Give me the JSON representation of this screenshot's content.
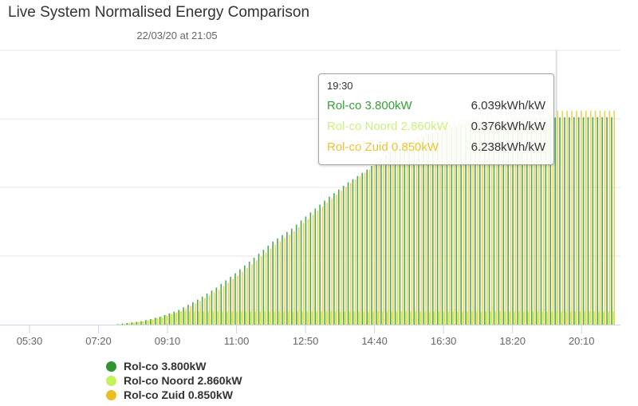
{
  "header": {
    "title": "Live System Normalised Energy Comparison",
    "subtitle": "22/03/20 at 21:05"
  },
  "tooltip": {
    "time": "19:30",
    "rows": [
      {
        "name": "Rol-co 3.800kW",
        "value": "6.039kWh/kW",
        "color": "#35a035"
      },
      {
        "name": "Rol-co Noord 2.860kW",
        "value": "0.376kWh/kW",
        "color": "#cdf07e"
      },
      {
        "name": "Rol-co Zuid 0.850kW",
        "value": "6.238kWh/kW",
        "color": "#ecc331"
      }
    ]
  },
  "legend": {
    "items": [
      {
        "label": "Rol-co 3.800kW",
        "color": "#2f962f"
      },
      {
        "label": "Rol-co Noord 2.860kW",
        "color": "#c3f25e"
      },
      {
        "label": "Rol-co Zuid 0.850kW",
        "color": "#ecbe23"
      }
    ]
  },
  "chart_data": {
    "type": "bar",
    "title": "Live System Normalised Energy Comparison",
    "subtitle": "22/03/20 at 21:05",
    "unit": "kWh/kW",
    "ylim": [
      0,
      8
    ],
    "y_gridlines": [
      0,
      2,
      4,
      6,
      8
    ],
    "y_axis_labels_visible": false,
    "x_ticks": [
      "05:30",
      "07:20",
      "09:10",
      "11:00",
      "12:50",
      "14:40",
      "16:30",
      "18:20",
      "20:10"
    ],
    "x_axis_range_minutes": [
      283,
      1272
    ],
    "bar_start": "07:45",
    "bar_end": "21:07",
    "bar_interval_minutes": 7.5,
    "hover_time": "19:30",
    "series": [
      {
        "name": "Rol-co 3.800kW",
        "color": "#2f962f",
        "bar_color": "#3fa03a",
        "times": [
          "07:45",
          "08:00",
          "08:30",
          "09:00",
          "09:30",
          "10:00",
          "10:30",
          "11:00",
          "11:30",
          "12:00",
          "12:30",
          "13:00",
          "13:30",
          "14:00",
          "14:30",
          "15:00",
          "15:30",
          "16:00",
          "16:30",
          "17:00",
          "17:30",
          "18:00",
          "18:30",
          "19:00",
          "19:30",
          "20:00",
          "20:30",
          "21:00",
          "21:07"
        ],
        "values": [
          0,
          0.03,
          0.1,
          0.23,
          0.43,
          0.73,
          1.08,
          1.5,
          1.95,
          2.42,
          2.8,
          3.27,
          3.73,
          4.15,
          4.52,
          4.95,
          5.25,
          5.5,
          5.68,
          5.82,
          5.91,
          5.96,
          6.0,
          6.02,
          6.039,
          6.05,
          6.05,
          6.05,
          6.05
        ]
      },
      {
        "name": "Rol-co Noord 2.860kW",
        "color": "#c3f25e",
        "bar_color": "#c9f464",
        "times": [
          "07:45",
          "08:00",
          "08:30",
          "09:00",
          "09:30",
          "10:00",
          "10:30",
          "11:00",
          "11:30",
          "12:00",
          "12:30",
          "13:00",
          "13:30",
          "14:00",
          "14:30",
          "15:00",
          "15:30",
          "16:00",
          "16:30",
          "17:00",
          "17:30",
          "18:00",
          "18:30",
          "19:00",
          "19:30",
          "20:00",
          "20:30",
          "21:00",
          "21:07"
        ],
        "values": [
          0,
          0.03,
          0.1,
          0.23,
          0.376,
          0.376,
          0.376,
          0.376,
          0.376,
          0.376,
          0.376,
          0.376,
          0.376,
          0.376,
          0.376,
          0.376,
          0.376,
          0.376,
          0.376,
          0.376,
          0.376,
          0.376,
          0.376,
          0.376,
          0.376,
          0.376,
          0.376,
          0.376,
          0.376
        ]
      },
      {
        "name": "Rol-co Zuid 0.850kW",
        "color": "#ecbe23",
        "bar_color": "#e8cf48",
        "times": [
          "07:45",
          "08:00",
          "08:30",
          "09:00",
          "09:30",
          "10:00",
          "10:30",
          "11:00",
          "11:30",
          "12:00",
          "12:30",
          "13:00",
          "13:30",
          "14:00",
          "14:30",
          "15:00",
          "15:30",
          "16:00",
          "16:30",
          "17:00",
          "17:30",
          "18:00",
          "18:30",
          "19:00",
          "19:30",
          "20:00",
          "20:30",
          "21:00",
          "21:07"
        ],
        "values": [
          0,
          0.03,
          0.09,
          0.21,
          0.4,
          0.69,
          1.02,
          1.43,
          1.87,
          2.33,
          2.72,
          3.2,
          3.68,
          4.13,
          4.52,
          4.99,
          5.32,
          5.61,
          5.83,
          5.99,
          6.1,
          6.17,
          6.21,
          6.23,
          6.238,
          6.24,
          6.24,
          6.24,
          6.24
        ]
      }
    ]
  }
}
